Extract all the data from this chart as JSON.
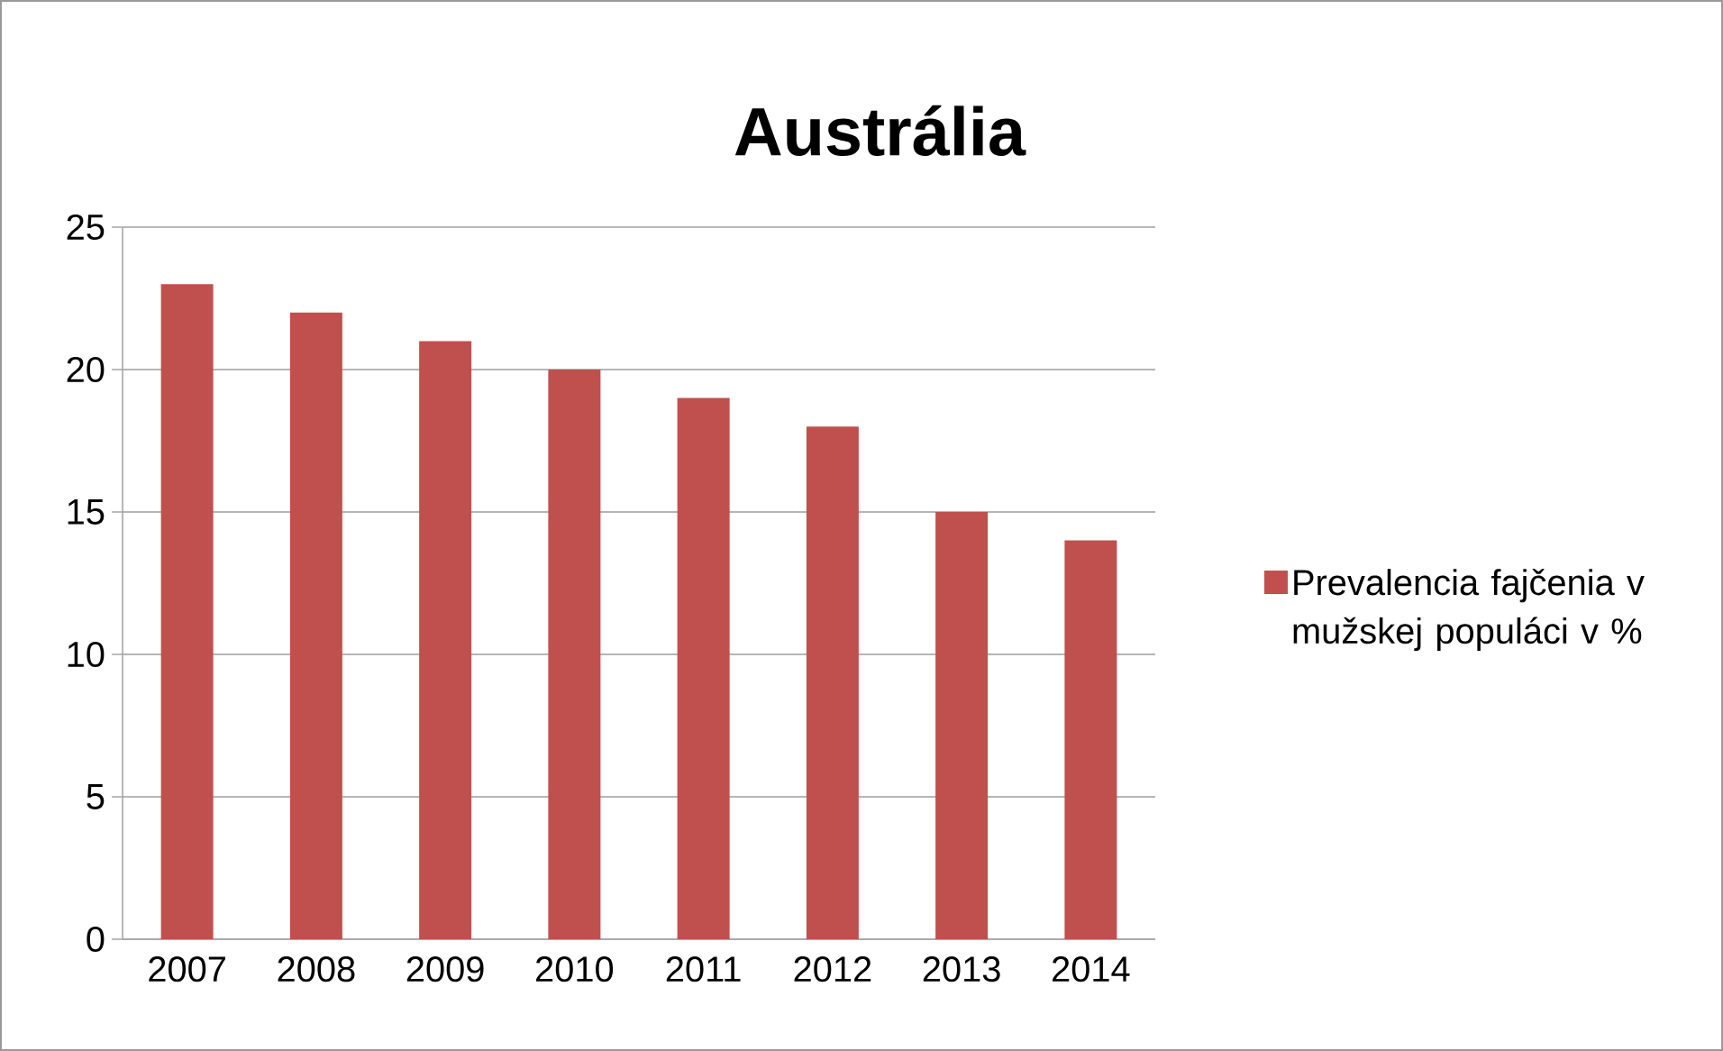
{
  "chart_data": {
    "type": "bar",
    "title": "Austrália",
    "categories": [
      "2007",
      "2008",
      "2009",
      "2010",
      "2011",
      "2012",
      "2013",
      "2014"
    ],
    "series": [
      {
        "name": "Prevalencia fajčenia v mužskej populáci v %",
        "color": "#c0504d",
        "values": [
          23,
          22,
          21,
          20,
          19,
          18,
          15,
          14
        ]
      }
    ],
    "ylim": [
      0,
      25
    ],
    "yticks": [
      0,
      5,
      10,
      15,
      20,
      25
    ],
    "grid": "y",
    "legend": "right"
  }
}
